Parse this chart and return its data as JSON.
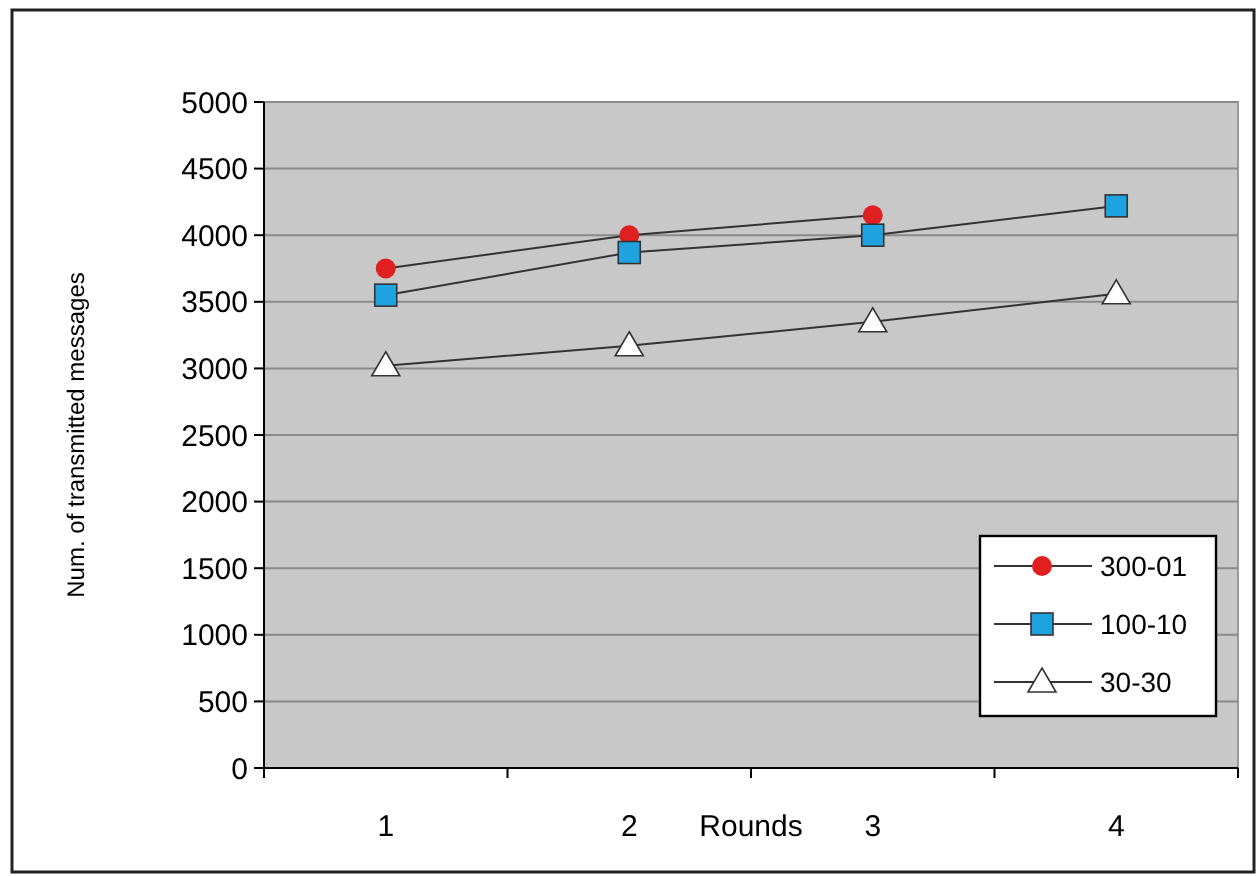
{
  "chart_data": {
    "type": "line",
    "xlabel": "Rounds",
    "ylabel": "Num. of transmitted messages",
    "categories": [
      "1",
      "2",
      "3",
      "4"
    ],
    "series": [
      {
        "name": "300-01",
        "color": "#e02020",
        "marker": "circle",
        "values": [
          3750,
          4000,
          4150,
          null
        ]
      },
      {
        "name": "100-10",
        "color": "#1fa3e0",
        "marker": "square",
        "values": [
          3550,
          3870,
          4000,
          4220
        ]
      },
      {
        "name": "30-30",
        "color": "#ffffff",
        "marker": "triangle",
        "values": [
          3020,
          3170,
          3350,
          3560
        ]
      }
    ],
    "ylim": [
      0,
      5000
    ],
    "yticks": [
      0,
      500,
      1000,
      1500,
      2000,
      2500,
      3000,
      3500,
      4000,
      4500,
      5000
    ],
    "grid": "y",
    "legend": "bottom right"
  }
}
